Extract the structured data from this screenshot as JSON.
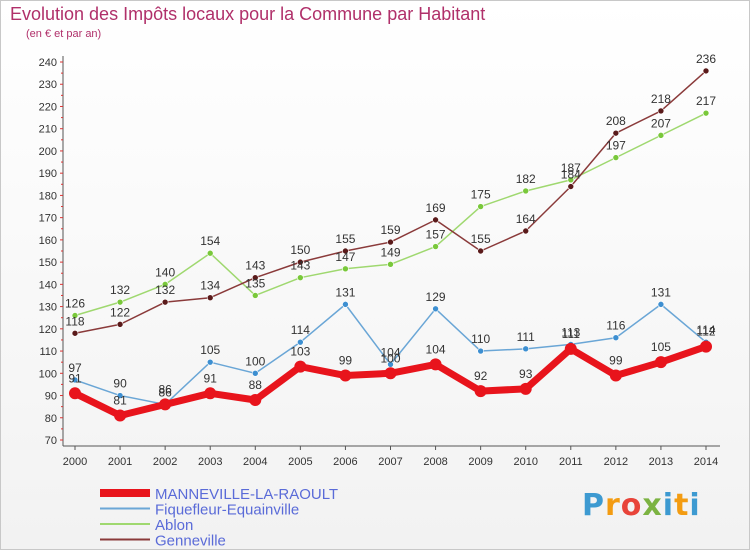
{
  "header": {
    "title": "Evolution des Impôts locaux pour la Commune par Habitant",
    "subtitle": "(en € et par an)"
  },
  "logo": {
    "text": "Proxiti"
  },
  "chart_data": {
    "type": "line",
    "title": "Evolution des Impôts locaux pour la Commune par Habitant",
    "subtitle": "(en € et par an)",
    "x": [
      "2000",
      "2001",
      "2002",
      "2003",
      "2004",
      "2005",
      "2006",
      "2007",
      "2008",
      "2009",
      "2010",
      "2011",
      "2012",
      "2013",
      "2014"
    ],
    "ylim": [
      70,
      240
    ],
    "yticks": [
      70,
      80,
      90,
      100,
      110,
      120,
      130,
      140,
      150,
      160,
      170,
      180,
      190,
      200,
      210,
      220,
      230,
      240
    ],
    "grid": false,
    "legend_position": "bottom-left",
    "series": [
      {
        "name": "MANNEVILLE-LA-RAOULT",
        "color": "#e8141c",
        "marker": "#e8141c",
        "bold": true,
        "values": [
          91,
          81,
          86,
          91,
          88,
          103,
          99,
          100,
          104,
          92,
          93,
          111,
          99,
          105,
          112
        ]
      },
      {
        "name": "Fiquefleur-Equainville",
        "color": "#6aa6d6",
        "marker": "#3d8fd1",
        "values": [
          97,
          90,
          86,
          105,
          100,
          114,
          131,
          104,
          129,
          110,
          111,
          113,
          116,
          131,
          114
        ]
      },
      {
        "name": "Ablon",
        "color": "#9fd86f",
        "marker": "#79c83a",
        "values": [
          126,
          132,
          140,
          154,
          135,
          143,
          147,
          149,
          157,
          175,
          182,
          187,
          197,
          207,
          217
        ]
      },
      {
        "name": "Genneville",
        "color": "#8a3a3a",
        "marker": "#5a1a1a",
        "values": [
          118,
          122,
          132,
          134,
          143,
          150,
          155,
          159,
          169,
          155,
          164,
          184,
          208,
          218,
          236
        ]
      }
    ]
  }
}
